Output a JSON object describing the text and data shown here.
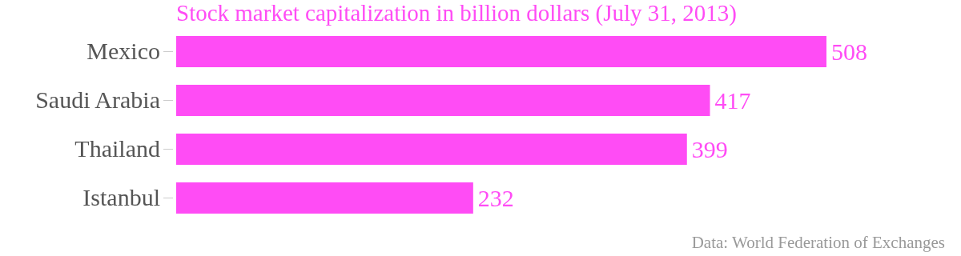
{
  "chart_data": {
    "type": "bar",
    "orientation": "horizontal",
    "title": "Stock market capitalization in billion dollars (July 31, 2013)",
    "categories": [
      "Mexico",
      "Saudi Arabia",
      "Thailand",
      "Istanbul"
    ],
    "values": [
      508,
      417,
      399,
      232
    ],
    "color": "#ff4cf5",
    "data_labels": true,
    "annotations": [
      "Data: World Federation of Exchanges"
    ]
  }
}
